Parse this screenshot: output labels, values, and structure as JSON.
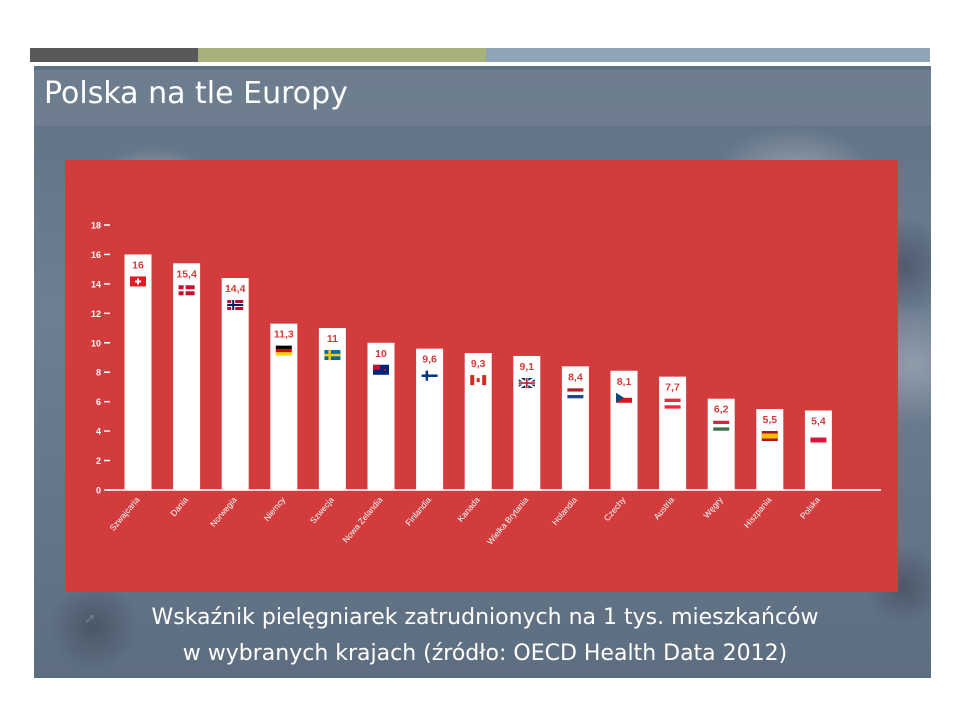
{
  "slide": {
    "title": "Polska na tle Europy",
    "caption_line1": "Wskaźnik pielęgniarek zatrudnionych na 1 tys. mieszkańców",
    "caption_line2": "w wybranych krajach (źródło: OECD Health Data 2012)"
  },
  "colors": {
    "panel": "#d33c3c",
    "bar": "#ffffff",
    "value_label": "#d33c3c",
    "axis_text": "#ffffff"
  },
  "chart_data": {
    "type": "bar",
    "categories": [
      "Szwajcaria",
      "Dania",
      "Norwegia",
      "Niemcy",
      "Szwecja",
      "Nowa Zelandia",
      "Finlandia",
      "Kanada",
      "Wielka Brytania",
      "Holandia",
      "Czechy",
      "Austria",
      "Węgry",
      "Hiszpania",
      "Polska"
    ],
    "values": [
      16,
      15.4,
      14.4,
      11.3,
      11,
      10,
      9.6,
      9.3,
      9.1,
      8.4,
      8.1,
      7.7,
      6.2,
      5.5,
      5.4
    ],
    "value_labels": [
      "16",
      "15,4",
      "14,4",
      "11,3",
      "11",
      "10",
      "9,6",
      "9,3",
      "9,1",
      "8,4",
      "8,1",
      "7,7",
      "6,2",
      "5,5",
      "5,4"
    ],
    "flags": [
      "flag-switzerland",
      "flag-denmark",
      "flag-norway",
      "flag-germany",
      "flag-sweden",
      "flag-new-zealand",
      "flag-finland",
      "flag-canada",
      "flag-united-kingdom",
      "flag-netherlands",
      "flag-czechia",
      "flag-austria",
      "flag-hungary",
      "flag-spain",
      "flag-poland"
    ],
    "yticks": [
      "0",
      "2",
      "4",
      "6",
      "8",
      "10",
      "12",
      "14",
      "16",
      "18"
    ],
    "ylim": [
      0,
      18
    ],
    "grid": false,
    "xlabel": "",
    "ylabel": ""
  }
}
